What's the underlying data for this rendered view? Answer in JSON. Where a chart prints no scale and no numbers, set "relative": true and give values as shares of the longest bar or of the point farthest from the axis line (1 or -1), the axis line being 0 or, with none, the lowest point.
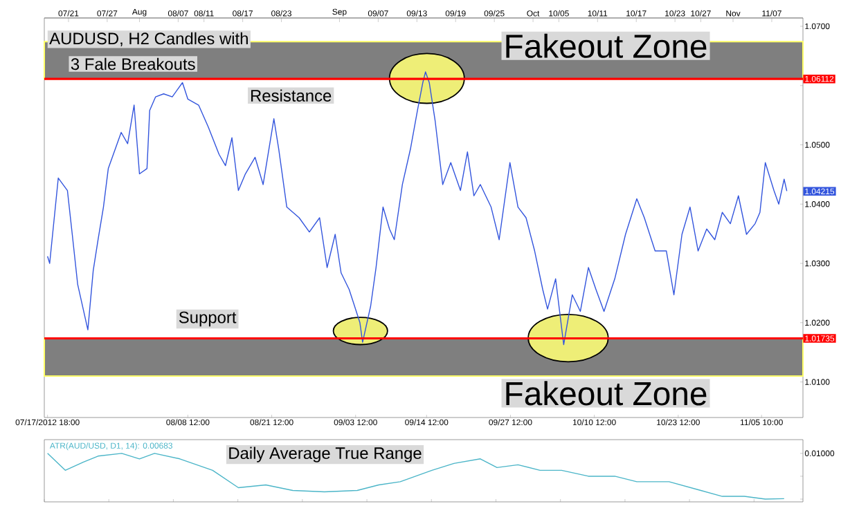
{
  "chart_data": [
    {
      "type": "line",
      "title": "AUDUSD, H2 Candles with",
      "subtitle": "3 Fale Breakouts",
      "color": "#3355dd",
      "x": [
        "2012-07-17T18:00",
        "2012-07-18T02:00",
        "2012-07-19T10:00",
        "2012-07-20T20:00",
        "2012-07-21T14:00",
        "2012-07-22T10:00",
        "2012-07-24T00:00",
        "2012-07-24T20:00",
        "2012-07-25T14:00",
        "2012-07-26T10:00",
        "2012-07-27T04:00",
        "2012-07-28T06:00",
        "2012-07-29T04:00",
        "2012-07-30T04:00",
        "2012-07-31T04:00",
        "2012-08-01T00:00",
        "2012-08-02T04:00",
        "2012-08-02T14:00",
        "2012-08-03T12:00",
        "2012-08-04T18:00",
        "2012-08-06T02:00",
        "2012-08-07T16:00",
        "2012-08-08T12:00",
        "2012-08-10T04:00",
        "2012-08-11T16:00",
        "2012-08-13T08:00",
        "2012-08-14T08:00",
        "2012-08-15T08:00",
        "2012-08-16T08:00",
        "2012-08-17T10:00",
        "2012-08-18T22:00",
        "2012-08-20T04:00",
        "2012-08-21T20:00",
        "2012-08-22T14:00",
        "2012-08-23T20:00",
        "2012-08-25T18:00",
        "2012-08-27T08:00",
        "2012-08-28T22:00",
        "2012-08-30T02:00",
        "2012-08-31T08:00",
        "2012-09-01T06:00",
        "2012-09-02T12:00",
        "2012-09-04T04:00",
        "2012-09-04T14:00",
        "2012-09-05T20:00",
        "2012-09-06T16:00",
        "2012-09-07T18:00",
        "2012-09-08T18:00",
        "2012-09-09T12:00",
        "2012-09-10T18:00",
        "2012-09-12T00:00",
        "2012-09-13T02:00",
        "2012-09-13T22:00",
        "2012-09-14T08:00",
        "2012-09-14T22:00",
        "2012-09-15T20:00",
        "2012-09-17T00:00",
        "2012-09-18T06:00",
        "2012-09-19T18:00",
        "2012-09-20T20:00",
        "2012-09-21T20:00",
        "2012-09-22T20:00",
        "2012-09-24T12:00",
        "2012-09-25T18:00",
        "2012-09-27T10:00",
        "2012-09-28T16:00",
        "2012-09-29T22:00",
        "2012-10-01T06:00",
        "2012-10-02T12:00",
        "2012-10-03T06:00",
        "2012-10-04T12:00",
        "2012-10-05T18:00",
        "2012-10-07T02:00",
        "2012-10-08T08:00",
        "2012-10-09T14:00",
        "2012-10-10T18:00",
        "2012-10-12T00:00",
        "2012-10-13T16:00",
        "2012-10-15T08:00",
        "2012-10-17T02:00",
        "2012-10-18T06:00",
        "2012-10-19T22:00",
        "2012-10-21T16:00",
        "2012-10-22T20:00",
        "2012-10-24T02:00",
        "2012-10-25T08:00",
        "2012-10-26T14:00",
        "2012-10-27T22:00",
        "2012-10-29T04:00",
        "2012-10-30T08:00",
        "2012-10-31T14:00",
        "2012-11-01T20:00",
        "2012-11-03T02:00",
        "2012-11-04T10:00",
        "2012-11-05T04:00",
        "2012-11-06T00:00",
        "2012-11-07T08:00",
        "2012-11-08T02:00",
        "2012-11-08T22:00",
        "2012-11-09T08:00"
      ],
      "values": [
        1.0312,
        1.03,
        1.0444,
        1.0423,
        1.0349,
        1.0265,
        1.0188,
        1.0288,
        1.034,
        1.0395,
        1.046,
        1.0493,
        1.0521,
        1.0502,
        1.0567,
        1.0451,
        1.046,
        1.0558,
        1.0581,
        1.0586,
        1.0581,
        1.0605,
        1.0577,
        1.0567,
        1.053,
        1.0484,
        1.0465,
        1.0512,
        1.0423,
        1.0451,
        1.0479,
        1.0433,
        1.0544,
        1.0493,
        1.0395,
        1.0377,
        1.0353,
        1.0377,
        1.0293,
        1.0349,
        1.0284,
        1.0256,
        1.02,
        1.0167,
        1.0228,
        1.0293,
        1.0395,
        1.0358,
        1.034,
        1.0433,
        1.0493,
        1.0558,
        1.0605,
        1.0623,
        1.0605,
        1.054,
        1.0433,
        1.047,
        1.0423,
        1.0488,
        1.0414,
        1.0433,
        1.0395,
        1.034,
        1.047,
        1.0395,
        1.0377,
        1.0321,
        1.0256,
        1.0223,
        1.0274,
        1.0163,
        1.0247,
        1.0219,
        1.0293,
        1.0256,
        1.0219,
        1.0274,
        1.0349,
        1.0409,
        1.0377,
        1.0321,
        1.0321,
        1.0247,
        1.0349,
        1.0395,
        1.0321,
        1.0358,
        1.034,
        1.0386,
        1.0367,
        1.0414,
        1.0349,
        1.0367,
        1.0386,
        1.047,
        1.0423,
        1.04,
        1.0442,
        1.0422
      ],
      "xlim": [
        "2012-07-17T06:00",
        "2012-11-11T20:00"
      ],
      "ylim": [
        1.004,
        1.0714
      ],
      "xticks": [
        {
          "value": "2012-07-17T18:00",
          "label": "07/17/2012 18:00"
        },
        {
          "value": "2012-08-08T12:00",
          "label": "08/08 12:00"
        },
        {
          "value": "2012-08-21T12:00",
          "label": "08/21 12:00"
        },
        {
          "value": "2012-09-03T12:00",
          "label": "09/03 12:00"
        },
        {
          "value": "2012-09-14T12:00",
          "label": "09/14 12:00"
        },
        {
          "value": "2012-09-27T12:00",
          "label": "09/27 12:00"
        },
        {
          "value": "2012-10-10T12:00",
          "label": "10/10 12:00"
        },
        {
          "value": "2012-10-23T12:00",
          "label": "10/23 12:00"
        },
        {
          "value": "2012-11-05T10:00",
          "label": "11/05 10:00"
        }
      ],
      "x2lim": [
        "2012-07-17T06:00",
        "2012-11-11T20:00"
      ],
      "x2ticks": [
        {
          "value": "2012-07-21",
          "label": "07/21"
        },
        {
          "value": "2012-07-27",
          "label": "07/27"
        },
        {
          "value": "2012-08-01",
          "label": "Aug"
        },
        {
          "value": "2012-08-07",
          "label": "08/07"
        },
        {
          "value": "2012-08-11",
          "label": "08/11"
        },
        {
          "value": "2012-08-17",
          "label": "08/17"
        },
        {
          "value": "2012-08-23",
          "label": "08/23"
        },
        {
          "value": "2012-09-01",
          "label": "Sep"
        },
        {
          "value": "2012-09-07",
          "label": "09/07"
        },
        {
          "value": "2012-09-13",
          "label": "09/13"
        },
        {
          "value": "2012-09-19",
          "label": "09/19"
        },
        {
          "value": "2012-09-25",
          "label": "09/25"
        },
        {
          "value": "2012-10-01",
          "label": "Oct"
        },
        {
          "value": "2012-10-05",
          "label": "10/05"
        },
        {
          "value": "2012-10-11",
          "label": "10/11"
        },
        {
          "value": "2012-10-17",
          "label": "10/17"
        },
        {
          "value": "2012-10-23",
          "label": "10/23"
        },
        {
          "value": "2012-10-27",
          "label": "10/27"
        },
        {
          "value": "2012-11-01",
          "label": "Nov"
        },
        {
          "value": "2012-11-07",
          "label": "11/07"
        }
      ],
      "yticks": [
        {
          "value": 1.01,
          "label": "1.0100"
        },
        {
          "value": 1.02,
          "label": "1.0200"
        },
        {
          "value": 1.03,
          "label": "1.0300"
        },
        {
          "value": 1.04,
          "label": "1.0400"
        },
        {
          "value": 1.05,
          "label": "1.0500"
        },
        {
          "value": 1.06,
          "label": null
        },
        {
          "value": 1.07,
          "label": "1.0700"
        }
      ],
      "ref_lines": [
        {
          "axis": "y",
          "value": 1.06112,
          "label": "1.06112",
          "color": "#ff0000"
        },
        {
          "axis": "y",
          "value": 1.01735,
          "label": "1.01735",
          "color": "#ff0000"
        }
      ],
      "bands": [
        {
          "axis": "y",
          "from": 1.06112,
          "to": 1.0674,
          "label": "Fakeout Zone",
          "color": "#7f7f7f"
        },
        {
          "axis": "y",
          "from": 1.011,
          "to": 1.01735,
          "label": "Fakeout Zone",
          "color": "#7f7f7f"
        }
      ],
      "annotations": [
        "Resistance",
        "Support",
        "1.04215"
      ]
    },
    {
      "type": "line",
      "title": "Daily Average True Range",
      "color": "#4bb5c8",
      "relative": true,
      "x": [
        "2012-07-17T18:00",
        "2012-07-20T12:00",
        "2012-07-23T08:00",
        "2012-07-25T14:00",
        "2012-07-29T06:00",
        "2012-08-01T00:00",
        "2012-08-03T08:00",
        "2012-08-07T06:00",
        "2012-08-12T08:00",
        "2012-08-16T08:00",
        "2012-08-20T14:00",
        "2012-08-24T18:00",
        "2012-08-29T16:00",
        "2012-09-03T18:00",
        "2012-09-07T02:00",
        "2012-09-10T10:00",
        "2012-09-15T08:00",
        "2012-09-18T18:00",
        "2012-09-22T20:00",
        "2012-09-25T10:00",
        "2012-09-28T16:00",
        "2012-10-02T02:00",
        "2012-10-05T10:00",
        "2012-10-09T14:00",
        "2012-10-13T16:00",
        "2012-10-17T02:00",
        "2012-10-22T02:00",
        "2012-10-27T00:00",
        "2012-10-30T08:00",
        "2012-11-02T18:00",
        "2012-11-06T00:00",
        "2012-11-08T22:00"
      ],
      "values": [
        1,
        0.63,
        0.81,
        0.94,
        1,
        0.88,
        1,
        0.88,
        0.63,
        0.25,
        0.31,
        0.19,
        0.16,
        0.19,
        0.31,
        0.38,
        0.63,
        0.78,
        0.88,
        0.69,
        0.75,
        0.63,
        0.63,
        0.5,
        0.5,
        0.38,
        0.38,
        0.19,
        0.06,
        0.06,
        0,
        0.01
      ],
      "xlim": [
        "2012-07-17T06:00",
        "2012-11-11T20:00"
      ],
      "annotations": [
        "ATR(AUD/USD, D1, 14): 0.00683",
        "0.01000"
      ]
    }
  ]
}
